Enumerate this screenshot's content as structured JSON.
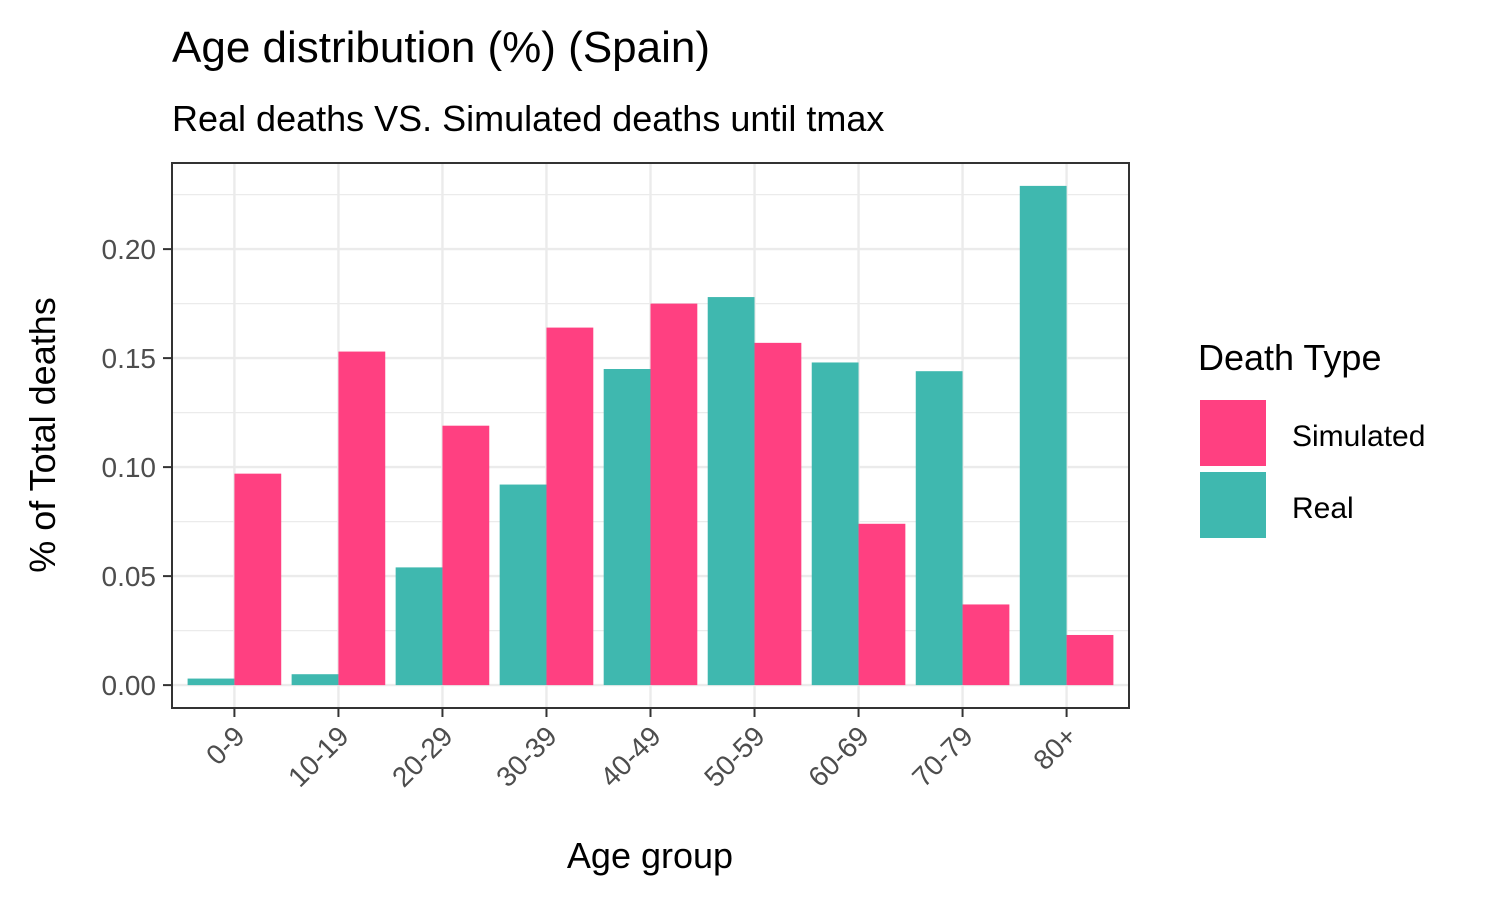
{
  "chart_data": {
    "type": "bar",
    "title": "Age distribution (%) (Spain)",
    "subtitle": "Real deaths VS. Simulated deaths until tmax",
    "xlabel": "Age group",
    "ylabel": "% of Total deaths",
    "categories": [
      "0-9",
      "10-19",
      "20-29",
      "30-39",
      "40-49",
      "50-59",
      "60-69",
      "70-79",
      "80+"
    ],
    "series": [
      {
        "name": "Real",
        "color": "#3fb8af",
        "values": [
          0.003,
          0.005,
          0.054,
          0.092,
          0.145,
          0.178,
          0.148,
          0.144,
          0.229
        ]
      },
      {
        "name": "Simulated",
        "color": "#ff4081",
        "values": [
          0.097,
          0.153,
          0.119,
          0.164,
          0.175,
          0.157,
          0.074,
          0.037,
          0.023
        ]
      }
    ],
    "yticks": [
      0.0,
      0.05,
      0.1,
      0.15,
      0.2
    ],
    "ytick_labels": [
      "0.00",
      "0.05",
      "0.10",
      "0.15",
      "0.20"
    ],
    "ylim": [
      -0.0105,
      0.2395
    ],
    "grid": true,
    "legend": {
      "title": "Death Type",
      "position": "right",
      "entries": [
        {
          "label": "Simulated",
          "color": "#ff4081"
        },
        {
          "label": "Real",
          "color": "#3fb8af"
        }
      ]
    }
  }
}
